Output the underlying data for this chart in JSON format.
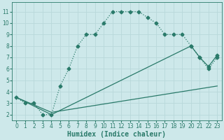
{
  "line1": {
    "x": [
      0,
      1,
      2,
      3,
      4,
      5,
      6,
      7,
      8,
      9,
      10,
      11,
      12,
      13,
      14,
      15,
      16,
      17,
      18,
      19,
      20,
      21,
      22,
      23
    ],
    "y": [
      3.5,
      3.0,
      3.0,
      2.0,
      2.0,
      4.5,
      6.0,
      8.0,
      9.0,
      9.0,
      10.0,
      11.0,
      11.0,
      11.0,
      11.0,
      10.5,
      10.0,
      9.0,
      9.0,
      9.0,
      8.0,
      7.0,
      6.0,
      7.0
    ],
    "style": ":",
    "marker": "D",
    "markersize": 2.5,
    "color": "#2a7a6a",
    "linewidth": 0.9
  },
  "line2": {
    "x": [
      0,
      4,
      20,
      21,
      22,
      23
    ],
    "y": [
      3.5,
      2.0,
      8.0,
      7.0,
      6.2,
      7.2
    ],
    "style": "-",
    "marker": "D",
    "markersize": 2.5,
    "markevery": [
      2,
      3,
      4,
      5
    ],
    "color": "#2a7a6a",
    "linewidth": 0.9
  },
  "line3": {
    "x": [
      0,
      4,
      23
    ],
    "y": [
      3.5,
      2.2,
      4.5
    ],
    "style": "-",
    "marker": null,
    "color": "#2a7a6a",
    "linewidth": 0.9
  },
  "xlabel": "Humidex (Indice chaleur)",
  "xlim": [
    -0.5,
    23.5
  ],
  "ylim": [
    1.5,
    11.8
  ],
  "xticks": [
    0,
    1,
    2,
    3,
    4,
    5,
    6,
    7,
    8,
    9,
    10,
    11,
    12,
    13,
    14,
    15,
    16,
    17,
    18,
    19,
    20,
    21,
    22,
    23
  ],
  "yticks": [
    2,
    3,
    4,
    5,
    6,
    7,
    8,
    9,
    10,
    11
  ],
  "bg_color": "#cde8ea",
  "grid_color": "#b8d8da",
  "line_color": "#2a7a6a",
  "tick_fontsize": 5.5,
  "label_fontsize": 7
}
